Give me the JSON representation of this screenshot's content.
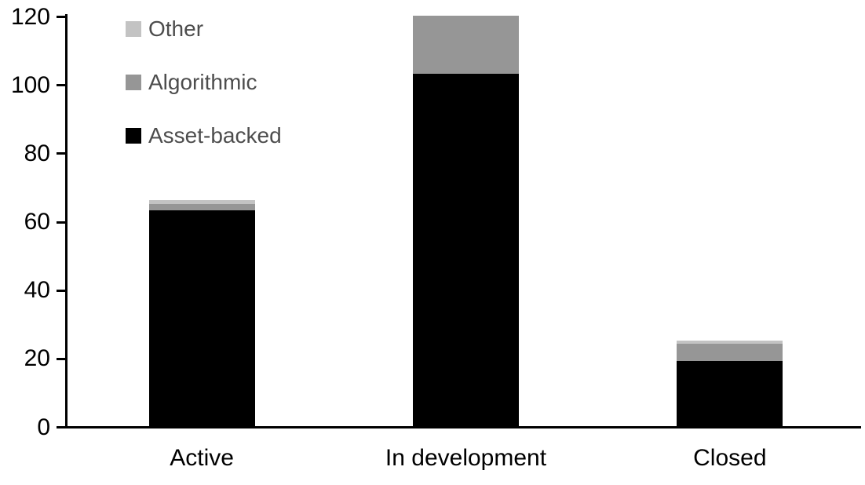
{
  "chart_data": {
    "type": "bar",
    "stacked": true,
    "title": "",
    "xlabel": "",
    "ylabel": "",
    "categories": [
      "Active",
      "In development",
      "Closed"
    ],
    "series": [
      {
        "name": "Asset-backed",
        "color": "#000000",
        "values": [
          63,
          103,
          19
        ]
      },
      {
        "name": "Algorithmic",
        "color": "#969696",
        "values": [
          2,
          17,
          5
        ]
      },
      {
        "name": "Other",
        "color": "#c3c3c3",
        "values": [
          1,
          0,
          1
        ]
      }
    ],
    "stack_totals": [
      66,
      120,
      25
    ],
    "ylim": [
      0,
      120
    ],
    "yticks": [
      0,
      20,
      40,
      60,
      80,
      100,
      120
    ],
    "grid": false,
    "legend": {
      "position": "top-left",
      "entries": [
        {
          "label": "Other",
          "color": "#c3c3c3"
        },
        {
          "label": "Algorithmic",
          "color": "#969696"
        },
        {
          "label": "Asset-backed",
          "color": "#000000"
        }
      ]
    },
    "colors": {
      "axis": "#000000",
      "tick_label_text": "#000000",
      "category_label_text": "#000000",
      "legend_text": "#4d4d4d",
      "background": "#ffffff"
    }
  }
}
